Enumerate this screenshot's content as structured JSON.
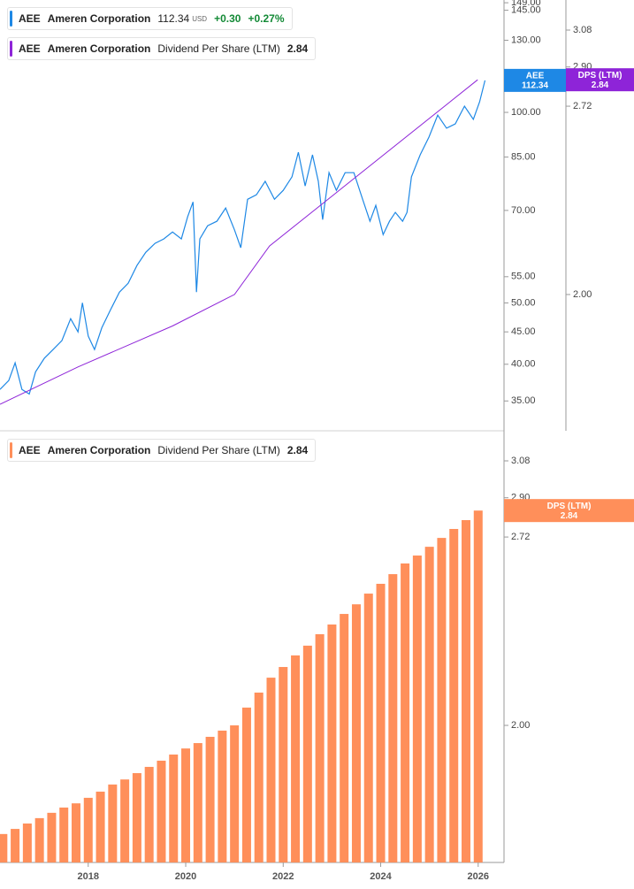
{
  "chart_data": [
    {
      "type": "line",
      "ylog": true,
      "xlim": [
        2016.19,
        2026.53
      ],
      "ylim": [
        31.4,
        150.5
      ],
      "y2lim": [
        1.601,
        3.235
      ],
      "yticks": [
        {
          "value": 35,
          "label": "35.00"
        },
        {
          "value": 40,
          "label": "40.00"
        },
        {
          "value": 45,
          "label": "45.00"
        },
        {
          "value": 50,
          "label": "50.00"
        },
        {
          "value": 55,
          "label": "55.00"
        },
        {
          "value": 70,
          "label": "70.00"
        },
        {
          "value": 85,
          "label": "85.00"
        },
        {
          "value": 100,
          "label": "100.00"
        },
        {
          "value": 130,
          "label": "130.00"
        },
        {
          "value": 145,
          "label": "145.00"
        },
        {
          "value": 149,
          "label": "149.00"
        }
      ],
      "y2ticks": [
        {
          "value": 2,
          "label": "2.00"
        },
        2.72,
        {
          "value": 2.9,
          "label": "2.90"
        },
        3.08
      ],
      "series": [
        {
          "ticker": "AEE",
          "name": "Ameren Corporation",
          "currency": "USD",
          "change": "+0.30",
          "change_pct": "+0.27%",
          "color": "#1e88e5",
          "x": [
            2016.19,
            2016.37,
            2016.5,
            2016.64,
            2016.79,
            2016.92,
            2017.1,
            2017.28,
            2017.46,
            2017.64,
            2017.79,
            2017.88,
            2018.0,
            2018.13,
            2018.28,
            2018.46,
            2018.64,
            2018.82,
            2019.0,
            2019.18,
            2019.37,
            2019.55,
            2019.73,
            2019.91,
            2020.04,
            2020.15,
            2020.22,
            2020.29,
            2020.45,
            2020.64,
            2020.82,
            2021.0,
            2021.13,
            2021.27,
            2021.45,
            2021.63,
            2021.82,
            2022.0,
            2022.18,
            2022.31,
            2022.45,
            2022.6,
            2022.72,
            2022.81,
            2022.94,
            2023.09,
            2023.27,
            2023.45,
            2023.63,
            2023.78,
            2023.9,
            2024.05,
            2024.18,
            2024.3,
            2024.45,
            2024.54,
            2024.63,
            2024.81,
            2024.99,
            2025.17,
            2025.35,
            2025.53,
            2025.72,
            2025.9,
            2026.03,
            2026.14
          ],
          "values": [
            36.5,
            37.7,
            40.2,
            36.5,
            35.9,
            38.9,
            40.9,
            42.2,
            43.6,
            47.2,
            45.0,
            50.0,
            44.3,
            42.2,
            45.7,
            48.8,
            52.0,
            53.7,
            57.3,
            60.1,
            62.1,
            63.1,
            64.7,
            63.1,
            68.4,
            72.2,
            52.0,
            63.1,
            66.2,
            67.3,
            70.6,
            65.2,
            61.1,
            72.9,
            74.1,
            77.8,
            72.9,
            75.3,
            79.1,
            86.5,
            76.5,
            85.7,
            77.8,
            67.7,
            80.3,
            75.3,
            80.3,
            80.3,
            72.9,
            67.3,
            71.3,
            64.1,
            67.3,
            69.5,
            67.3,
            69.5,
            79.1,
            85.7,
            91.4,
            99.0,
            94.4,
            95.9,
            102.3,
            97.5,
            103.9,
            112.34
          ]
        },
        {
          "ticker": "AEE",
          "company": "Ameren Corporation",
          "name": "Dividend Per Share (LTM)",
          "badge": "DPS (LTM)",
          "color": "#8e24d8",
          "axis": "y2",
          "x": [
            2016.19,
            2017.79,
            2019.73,
            2021.0,
            2021.72,
            2025.99
          ],
          "values": [
            1.672,
            1.777,
            1.9,
            2.0,
            2.165,
            2.84
          ]
        }
      ]
    },
    {
      "type": "bar",
      "ylog": true,
      "xlim": [
        2016.19,
        2026.53
      ],
      "ylim": [
        1.599,
        3.235
      ],
      "yticks": [
        {
          "value": 2,
          "label": "2.00"
        },
        2.72,
        {
          "value": 2.9,
          "label": "2.90"
        },
        3.08
      ],
      "xticks": [
        2018,
        2020,
        2022,
        2024,
        2026
      ],
      "x": [
        2016.25,
        2016.5,
        2016.75,
        2017,
        2017.25,
        2017.5,
        2017.75,
        2018,
        2018.25,
        2018.5,
        2018.75,
        2019,
        2019.25,
        2019.5,
        2019.75,
        2020,
        2020.25,
        2020.5,
        2020.75,
        2021,
        2021.25,
        2021.5,
        2021.75,
        2022,
        2022.25,
        2022.5,
        2022.75,
        2023,
        2023.25,
        2023.5,
        2023.75,
        2024,
        2024.25,
        2024.5,
        2024.75,
        2025,
        2025.25,
        2025.5,
        2025.75,
        2026
      ],
      "series": [
        {
          "ticker": "AEE",
          "company": "Ameren Corporation",
          "name": "Dividend Per Share (LTM)",
          "badge": "DPS (LTM)",
          "color": "#ff8f5a",
          "values": [
            1.675,
            1.689,
            1.704,
            1.719,
            1.734,
            1.749,
            1.761,
            1.777,
            1.795,
            1.816,
            1.831,
            1.85,
            1.869,
            1.888,
            1.907,
            1.926,
            1.943,
            1.963,
            1.983,
            2.0,
            2.059,
            2.11,
            2.162,
            2.2,
            2.242,
            2.278,
            2.321,
            2.358,
            2.399,
            2.437,
            2.48,
            2.52,
            2.56,
            2.605,
            2.639,
            2.677,
            2.716,
            2.756,
            2.796,
            2.84
          ]
        }
      ]
    }
  ]
}
